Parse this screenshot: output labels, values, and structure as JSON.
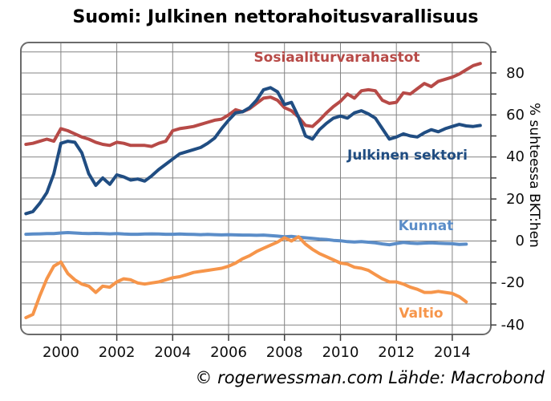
{
  "title": "Suomi: Julkinen nettorahoitusvarallisuus",
  "footer": "© rogerwessman.com Lähde: Macrobond",
  "chart_data": {
    "type": "line",
    "title": "Suomi: Julkinen nettorahoitusvarallisuus",
    "ylabel_right": "% suhteessa BKT:hen",
    "source_note": "© rogerwessman.com Lähde: Macrobond",
    "grid": true,
    "legend_position": "inline-labels",
    "x_start": 1998.75,
    "x_step": 0.25,
    "xlim": [
      1998.57,
      2015.38
    ],
    "ylim": [
      -44.5,
      94.5
    ],
    "x_ticks": [
      2000,
      2002,
      2004,
      2006,
      2008,
      2010,
      2012,
      2014
    ],
    "y_ticks_labeled": [
      -40,
      -20,
      0,
      20,
      40,
      60,
      80
    ],
    "y_grid_step": 10,
    "series": [
      {
        "name": "Sosiaaliturvarahastot",
        "color": "#b74a47",
        "values": [
          46,
          46.5,
          47.5,
          48.5,
          47.5,
          53.5,
          52.5,
          51,
          49.5,
          48.5,
          47,
          46,
          45.5,
          47,
          46.5,
          45.5,
          45.5,
          45.5,
          45,
          46.5,
          47.5,
          52.5,
          53.5,
          54,
          54.5,
          55.5,
          56.5,
          57.5,
          58,
          60,
          62.5,
          61.5,
          63,
          65.5,
          68,
          68.5,
          67,
          63.5,
          62,
          59,
          55,
          54.5,
          57.5,
          61,
          64,
          66.5,
          70,
          68,
          71.5,
          72,
          71.5,
          67,
          65.5,
          66,
          70.5,
          70,
          72.5,
          75,
          73.5,
          76,
          77,
          78,
          79.5,
          81.5,
          83.5,
          84.5
        ]
      },
      {
        "name": "Julkinen sektori",
        "color": "#204d82",
        "values": [
          13,
          14,
          18,
          23,
          32,
          46.5,
          47.5,
          47,
          42,
          32,
          26.5,
          30,
          27,
          31.5,
          30.5,
          29,
          29.5,
          28.5,
          31,
          34,
          36.5,
          39,
          41.5,
          42.5,
          43.5,
          44.5,
          46.5,
          49,
          53.5,
          57.5,
          61,
          61.5,
          63.5,
          67,
          72,
          73,
          71,
          65,
          66,
          59,
          50,
          48.5,
          53,
          56,
          58.5,
          59.5,
          58.5,
          61,
          62,
          60.5,
          58.5,
          53.5,
          48.5,
          49.5,
          51,
          50,
          49.5,
          51.5,
          53,
          52,
          53.5,
          54.5,
          55.5,
          54.8,
          54.5,
          55
        ]
      },
      {
        "name": "Kunnat",
        "color": "#5b8dc8",
        "values": [
          3.2,
          3.3,
          3.4,
          3.5,
          3.5,
          3.8,
          4,
          3.8,
          3.6,
          3.5,
          3.6,
          3.5,
          3.4,
          3.5,
          3.3,
          3.2,
          3.2,
          3.3,
          3.4,
          3.3,
          3.2,
          3.2,
          3.3,
          3.2,
          3.1,
          3,
          3.1,
          3,
          2.9,
          3,
          2.9,
          2.8,
          2.8,
          2.7,
          2.8,
          2.6,
          2.3,
          2,
          2.2,
          1.8,
          1.5,
          1.2,
          0.9,
          0.7,
          0.3,
          0.1,
          -0.3,
          -0.5,
          -0.3,
          -0.6,
          -0.9,
          -1.4,
          -1.8,
          -1.2,
          -0.7,
          -1,
          -1.2,
          -1,
          -0.9,
          -1.1,
          -1.2,
          -1.3,
          -1.6,
          -1.5,
          null,
          null
        ]
      },
      {
        "name": "Valtio",
        "color": "#f6954a",
        "values": [
          -36.5,
          -35,
          -26,
          -18,
          -12,
          -10,
          -15.5,
          -18.5,
          -20.5,
          -21.5,
          -24.5,
          -21.5,
          -22,
          -19.5,
          -18,
          -18.5,
          -20,
          -20.5,
          -20,
          -19.5,
          -18.5,
          -17.5,
          -17,
          -16,
          -15,
          -14.5,
          -14,
          -13.5,
          -13,
          -12,
          -10.5,
          -8.5,
          -7,
          -5,
          -3.5,
          -2,
          -0.5,
          1.5,
          0,
          2,
          -1.5,
          -4,
          -6,
          -7.5,
          -9,
          -10.5,
          -11,
          -12.5,
          -13,
          -14,
          -16,
          -18,
          -19.5,
          -19.5,
          -20.5,
          -22,
          -23,
          -24.5,
          -24.5,
          -24,
          -24.5,
          -25,
          -26.5,
          -29,
          null,
          null
        ]
      }
    ]
  }
}
